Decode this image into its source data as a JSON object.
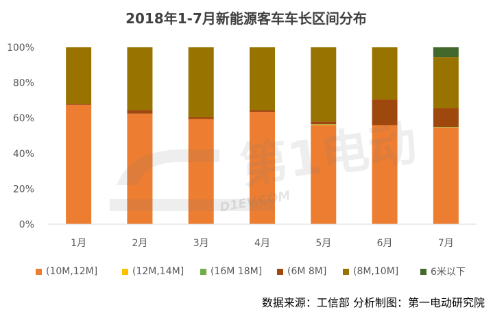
{
  "chart_data": {
    "type": "bar",
    "stacked": true,
    "title": "2018年1-7月新能源客车车长区间分布",
    "categories": [
      "1月",
      "2月",
      "3月",
      "4月",
      "5月",
      "6月",
      "7月"
    ],
    "ylim": [
      0,
      100
    ],
    "yticks": [
      "0%",
      "20%",
      "40%",
      "60%",
      "80%",
      "100%"
    ],
    "grid": false,
    "legend_position": "bottom",
    "series": [
      {
        "name": "(10M,12M]",
        "color": "#ED7D31",
        "values": [
          67.5,
          62.5,
          59.5,
          63.5,
          56,
          56,
          54.5
        ]
      },
      {
        "name": "(12M,14M]",
        "color": "#FFC000",
        "values": [
          0,
          0,
          0,
          0,
          0.3,
          0,
          0.2
        ]
      },
      {
        "name": "(16M 18M]",
        "color": "#70AD47",
        "values": [
          0,
          0,
          0,
          0,
          0.2,
          0,
          0.3
        ]
      },
      {
        "name": "(6M 8M]",
        "color": "#9E480E",
        "values": [
          0.5,
          2,
          1,
          1,
          1.5,
          14.5,
          10.5
        ]
      },
      {
        "name": "(8M,10M]",
        "color": "#997300",
        "values": [
          32,
          35.5,
          39.5,
          35.5,
          42,
          29.5,
          29
        ]
      },
      {
        "name": "6米以下",
        "color": "#43682B",
        "values": [
          0,
          0,
          0,
          0,
          0,
          0,
          5.5
        ]
      }
    ]
  },
  "source": "数据来源：工信部  分析制图：第一电动研究院",
  "watermark_text": "D1EV.COM",
  "watermark_logo_text": "第1电动"
}
